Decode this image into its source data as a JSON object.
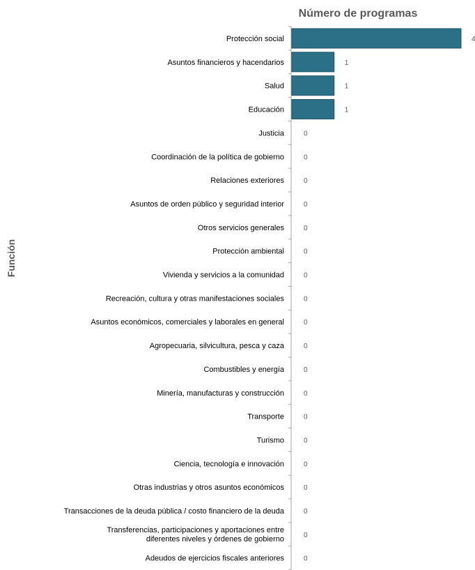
{
  "chart_data": {
    "type": "bar",
    "orientation": "horizontal",
    "title": "Número de programas",
    "xlabel": "",
    "ylabel": "Función",
    "xlim": [
      0,
      4
    ],
    "grid": false,
    "legend": "none",
    "bar_color": "#2c7088",
    "categories": [
      "Protección social",
      "Asuntos financieros y hacendarios",
      "Salud",
      "Educación",
      "Justicia",
      "Coordinación de la política de gobierno",
      "Relaciones exteriores",
      "Asuntos de orden público y seguridad interior",
      "Otros servicios generales",
      "Protección ambiental",
      "Vivienda y servicios a la comunidad",
      "Recreación, cultura y otras manifestaciones sociales",
      "Asuntos económicos, comerciales y laborales en general",
      "Agropecuaria, silvicultura, pesca y caza",
      "Combustibles y energía",
      "Minería, manufacturas y construcción",
      "Transporte",
      "Turismo",
      "Ciencia, tecnología e innovación",
      "Otras industrias y otros asuntos económicos",
      "Transacciones de la deuda pública / costo financiero de la deuda",
      "Transferencias, participaciones y aportaciones entre diferentes niveles y órdenes de gobierno",
      "Adeudos de ejercicios fiscales anteriores"
    ],
    "values": [
      4,
      1,
      1,
      1,
      0,
      0,
      0,
      0,
      0,
      0,
      0,
      0,
      0,
      0,
      0,
      0,
      0,
      0,
      0,
      0,
      0,
      0,
      0
    ]
  }
}
